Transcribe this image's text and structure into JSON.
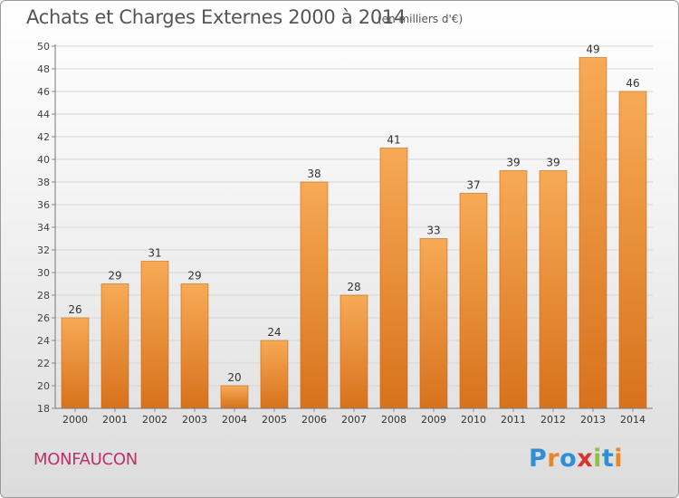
{
  "header": {
    "title": "Achats et Charges Externes 2000 à 2014",
    "subtitle": "(en milliers d'€)"
  },
  "footer": {
    "commune": "MONFAUCON",
    "logo": {
      "text": "Proxiti",
      "letters": [
        "P",
        "r",
        "o",
        "x",
        "i",
        "t",
        "i"
      ],
      "colors": [
        "#2e8fd6",
        "#e8862a",
        "#2e8fd6",
        "#d9342b",
        "#8cc43f",
        "#2e8fd6",
        "#e8862a"
      ]
    }
  },
  "colors": {
    "bar_light": "#f7aa55",
    "bar_dark": "#d8721c",
    "commune": "#c0306a"
  },
  "chart_data": {
    "type": "bar",
    "title": "Achats et Charges Externes 2000 à 2014",
    "subtitle": "(en milliers d'€)",
    "xlabel": "",
    "ylabel": "",
    "categories": [
      "2000",
      "2001",
      "2002",
      "2003",
      "2004",
      "2005",
      "2006",
      "2007",
      "2008",
      "2009",
      "2010",
      "2011",
      "2012",
      "2013",
      "2014"
    ],
    "values": [
      26,
      29,
      31,
      29,
      20,
      24,
      38,
      28,
      41,
      33,
      37,
      39,
      39,
      49,
      46
    ],
    "ylim": [
      18,
      50
    ],
    "yticks": [
      18,
      20,
      22,
      24,
      26,
      28,
      30,
      32,
      34,
      36,
      38,
      40,
      42,
      44,
      46,
      48,
      50
    ],
    "grid": true,
    "data_labels": true
  }
}
